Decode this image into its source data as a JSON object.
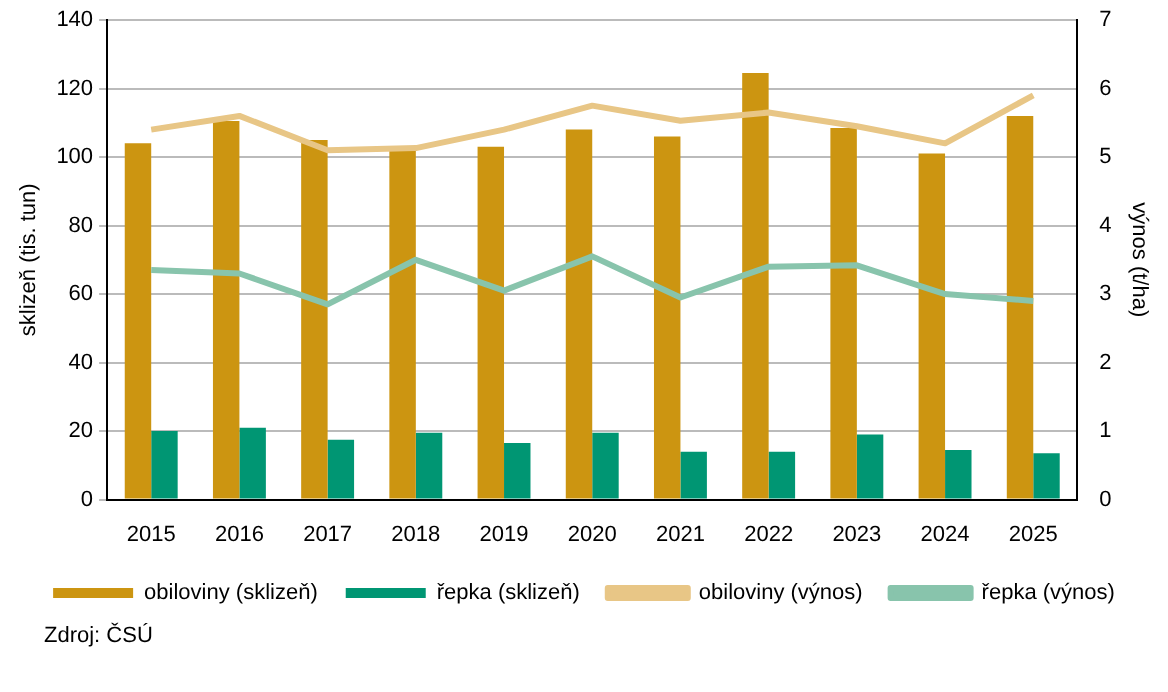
{
  "chart_data": {
    "type": "bar",
    "categories": [
      "2015",
      "2016",
      "2017",
      "2018",
      "2019",
      "2020",
      "2021",
      "2022",
      "2023",
      "2024",
      "2025"
    ],
    "series": [
      {
        "name": "obiloviny (sklizeň)",
        "color": "#cc9511",
        "values": [
          104,
          110.5,
          105,
          103,
          103,
          108,
          106,
          124.5,
          108.5,
          101,
          112
        ]
      },
      {
        "name": "řepka (sklizeň)",
        "color": "#009673",
        "values": [
          20,
          21,
          17.5,
          19.5,
          16.5,
          19.5,
          14,
          14,
          19,
          14.5,
          13.5
        ]
      },
      {
        "name": "obiloviny (výnos)",
        "type": "line",
        "axis": "y2",
        "color": "#e8c686",
        "values": [
          5.4,
          5.6,
          5.1,
          5.13,
          5.4,
          5.75,
          5.53,
          5.65,
          5.45,
          5.2,
          5.9
        ]
      },
      {
        "name": "řepka (výnos)",
        "type": "line",
        "axis": "y2",
        "color": "#88c4ac",
        "values": [
          3.35,
          3.3,
          2.85,
          3.5,
          3.05,
          3.55,
          2.95,
          3.4,
          3.42,
          3.0,
          2.9
        ]
      }
    ],
    "ylabel": "sklizeň (tis. tun)",
    "y2label": "výnos (t/ha)",
    "ylim": [
      0,
      140
    ],
    "yticks": [
      0,
      20,
      40,
      60,
      80,
      100,
      120,
      140
    ],
    "y2lim": [
      0,
      7
    ],
    "y2ticks": [
      0,
      1,
      2,
      3,
      4,
      5,
      6,
      7
    ],
    "grid": "y",
    "legend": "bottom",
    "marker": "none",
    "annotations": [
      "Zdroj: ČSÚ"
    ]
  }
}
